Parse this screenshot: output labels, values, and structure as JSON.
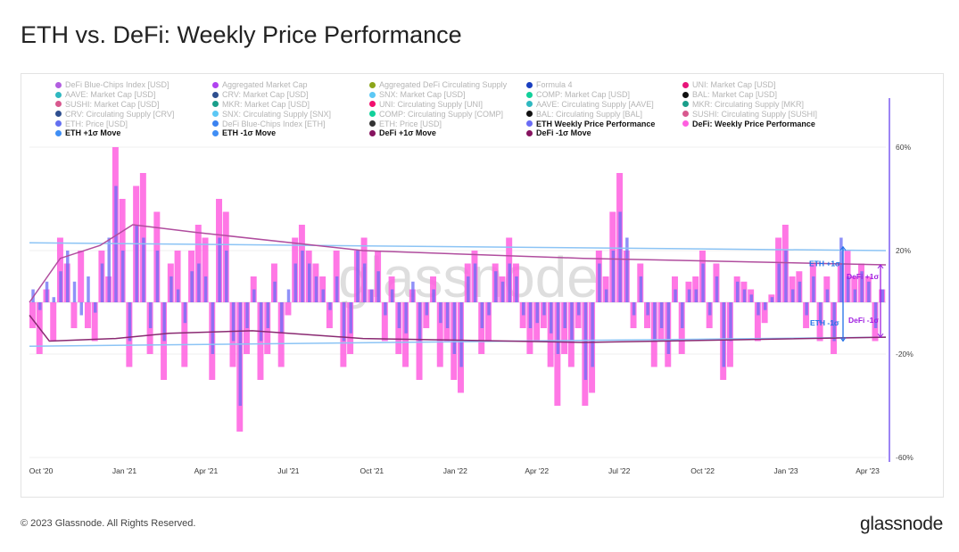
{
  "page": {
    "title": "ETH vs. DeFi: Weekly Price Performance",
    "footer": "© 2023 Glassnode. All Rights Reserved.",
    "logo": "glassnode",
    "watermark": "glassnode"
  },
  "legend": [
    {
      "label": "DeFi Blue-Chips Index [USD]",
      "color": "#b25ee0",
      "active": false
    },
    {
      "label": "Aggregated Market Cap",
      "color": "#b043f0",
      "active": false
    },
    {
      "label": "Aggregated DeFi Circulating Supply",
      "color": "#8ca51a",
      "active": false
    },
    {
      "label": "Formula 4",
      "color": "#1a3fc0",
      "active": false
    },
    {
      "label": "UNI: Market Cap [USD]",
      "color": "#e8157a",
      "active": false
    },
    {
      "label": "AAVE: Market Cap [USD]",
      "color": "#2fb8c0",
      "active": false
    },
    {
      "label": "CRV: Market Cap [USD]",
      "color": "#2e4f8f",
      "active": false
    },
    {
      "label": "SNX: Market Cap [USD]",
      "color": "#5cc8f5",
      "active": false
    },
    {
      "label": "COMP: Market Cap [USD]",
      "color": "#12d09a",
      "active": false
    },
    {
      "label": "BAL: Market Cap [USD]",
      "color": "#111111",
      "active": false
    },
    {
      "label": "SUSHI: Market Cap [USD]",
      "color": "#d8588e",
      "active": false
    },
    {
      "label": "MKR: Market Cap [USD]",
      "color": "#1a9e8a",
      "active": false
    },
    {
      "label": "UNI: Circulating Supply [UNI]",
      "color": "#f0106e",
      "active": false
    },
    {
      "label": "AAVE: Circulating Supply [AAVE]",
      "color": "#2fb8c0",
      "active": false
    },
    {
      "label": "MKR: Circulating Supply [MKR]",
      "color": "#1a9e8a",
      "active": false
    },
    {
      "label": "CRV: Circulating Supply [CRV]",
      "color": "#2e4f8f",
      "active": false
    },
    {
      "label": "SNX: Circulating Supply [SNX]",
      "color": "#5cc8f5",
      "active": false
    },
    {
      "label": "COMP: Circulating Supply [COMP]",
      "color": "#12d09a",
      "active": false
    },
    {
      "label": "BAL: Circulating Supply [BAL]",
      "color": "#111111",
      "active": false
    },
    {
      "label": "SUSHI: Circulating Supply [SUSHI]",
      "color": "#d8588e",
      "active": false
    },
    {
      "label": "ETH: Price [USD]",
      "color": "#6470f0",
      "active": false
    },
    {
      "label": "DeFi Blue-Chips Index [ETH]",
      "color": "#3b82f0",
      "active": false
    },
    {
      "label": "ETH: Price [USD]",
      "color": "#333333",
      "active": false
    },
    {
      "label": "ETH Weekly Price Performance",
      "color": "#6a6cf5",
      "active": true
    },
    {
      "label": "DeFi: Weekly Price Performance",
      "color": "#ff5fe0",
      "active": true
    },
    {
      "label": "ETH +1σ Move",
      "color": "#3f8ef5",
      "active": true
    },
    {
      "label": "ETH -1σ Move",
      "color": "#3f8ef5",
      "active": true
    },
    {
      "label": "DeFi +1σ Move",
      "color": "#86135f",
      "active": true
    },
    {
      "label": "DeFi -1σ Move",
      "color": "#86135f",
      "active": true
    }
  ],
  "chart_data": {
    "type": "bar",
    "title": "ETH vs. DeFi: Weekly Price Performance",
    "xlim": [
      "2020-09-28",
      "2023-05-01"
    ],
    "ylim": [
      -60,
      80
    ],
    "y_ticks": [
      "60%",
      "20%",
      "-20%",
      "-60%"
    ],
    "y_tick_values": [
      60,
      20,
      -20,
      -60
    ],
    "y_axis_side": "right",
    "x_ticks": [
      {
        "label": "Oct '20",
        "date": "2020-10-01"
      },
      {
        "label": "Jan '21",
        "date": "2021-01-01"
      },
      {
        "label": "Apr '21",
        "date": "2021-04-01"
      },
      {
        "label": "Jul '21",
        "date": "2021-07-01"
      },
      {
        "label": "Oct '21",
        "date": "2021-10-01"
      },
      {
        "label": "Jan '22",
        "date": "2022-01-01"
      },
      {
        "label": "Apr '22",
        "date": "2022-04-01"
      },
      {
        "label": "Jul '22",
        "date": "2022-07-01"
      },
      {
        "label": "Oct '22",
        "date": "2022-10-01"
      },
      {
        "label": "Jan '23",
        "date": "2023-01-01"
      },
      {
        "label": "Apr '23",
        "date": "2023-04-01"
      }
    ],
    "grid": true,
    "legend_position": "top",
    "series": [
      {
        "name": "ETH Weekly Price Performance",
        "color": "#6a6cf5",
        "values": [
          5,
          -3,
          8,
          2,
          12,
          20,
          8,
          -5,
          10,
          -4,
          15,
          25,
          45,
          20,
          -15,
          30,
          25,
          -10,
          20,
          -15,
          10,
          5,
          -8,
          12,
          15,
          10,
          -20,
          25,
          20,
          -15,
          -40,
          -10,
          5,
          -15,
          -10,
          8,
          -12,
          5,
          15,
          20,
          15,
          10,
          5,
          -3,
          10,
          -15,
          -12,
          20,
          15,
          5,
          12,
          -5,
          5,
          -10,
          -12,
          8,
          -15,
          -5,
          5,
          -8,
          -10,
          -20,
          -25,
          10,
          15,
          -10,
          -5,
          12,
          8,
          15,
          10,
          -5,
          -10,
          -8,
          -5,
          -12,
          -20,
          -10,
          -15,
          -5,
          -30,
          -25,
          15,
          5,
          20,
          35,
          25,
          -5,
          10,
          -5,
          -15,
          -10,
          -20,
          5,
          -10,
          5,
          5,
          15,
          -5,
          10,
          -25,
          -15,
          8,
          5,
          3,
          -5,
          -3,
          2,
          15,
          20,
          5,
          8,
          -5,
          10,
          -8,
          5,
          -15,
          25,
          10,
          5,
          12,
          8,
          -10,
          5
        ]
      },
      {
        "name": "DeFi: Weekly Price Performance",
        "color": "#ff5fe0",
        "values": [
          -10,
          -20,
          5,
          -15,
          25,
          15,
          -10,
          20,
          -10,
          -15,
          20,
          10,
          60,
          40,
          -25,
          45,
          50,
          -20,
          35,
          -30,
          15,
          20,
          -25,
          20,
          30,
          25,
          -30,
          40,
          35,
          -25,
          -50,
          -20,
          10,
          -30,
          -20,
          15,
          -25,
          -5,
          25,
          30,
          20,
          15,
          10,
          -10,
          20,
          -25,
          -20,
          20,
          25,
          5,
          20,
          -15,
          10,
          -20,
          -25,
          5,
          -30,
          -10,
          10,
          -25,
          -15,
          -30,
          -35,
          15,
          20,
          -20,
          -15,
          15,
          10,
          25,
          15,
          -10,
          -20,
          -15,
          -10,
          -25,
          -40,
          -20,
          -25,
          -10,
          -40,
          -35,
          20,
          10,
          35,
          50,
          20,
          -10,
          15,
          -10,
          -25,
          -15,
          -25,
          10,
          -20,
          8,
          10,
          20,
          -10,
          15,
          -30,
          -25,
          10,
          8,
          5,
          -15,
          -8,
          3,
          25,
          30,
          10,
          12,
          -10,
          15,
          -15,
          10,
          -20,
          15,
          20,
          10,
          15,
          10,
          -15,
          5
        ]
      },
      {
        "name": "ETH +1σ Move",
        "color": "#8cc4f5",
        "points": [
          [
            "2020-09-28",
            23
          ],
          [
            "2023-05-01",
            20
          ]
        ]
      },
      {
        "name": "ETH -1σ Move",
        "color": "#8cc4f5",
        "points": [
          [
            "2020-09-28",
            -17
          ],
          [
            "2023-05-01",
            -13.5
          ]
        ]
      },
      {
        "name": "DeFi +1σ Move",
        "color": "#b04d9e",
        "points": [
          [
            "2020-09-28",
            0
          ],
          [
            "2020-11-01",
            17
          ],
          [
            "2020-12-15",
            22
          ],
          [
            "2021-01-20",
            30
          ],
          [
            "2021-04-01",
            27
          ],
          [
            "2021-10-01",
            20
          ],
          [
            "2022-06-01",
            17
          ],
          [
            "2023-05-01",
            14.5
          ]
        ]
      },
      {
        "name": "DeFi -1σ Move",
        "color": "#8a2a72",
        "points": [
          [
            "2020-09-28",
            -5
          ],
          [
            "2020-10-20",
            -15
          ],
          [
            "2021-01-01",
            -14
          ],
          [
            "2021-03-01",
            -12
          ],
          [
            "2021-06-01",
            -11
          ],
          [
            "2021-10-01",
            -14
          ],
          [
            "2022-06-01",
            -15.5
          ],
          [
            "2023-05-01",
            -13.5
          ]
        ]
      }
    ],
    "annotations": [
      {
        "label": "ETH +1σ",
        "color": "#1f6fe8"
      },
      {
        "label": "ETH -1σ",
        "color": "#1f6fe8"
      },
      {
        "label": "DeFi +1σ",
        "color": "#a020e0"
      },
      {
        "label": "DeFi -1σ",
        "color": "#a020e0"
      }
    ]
  }
}
